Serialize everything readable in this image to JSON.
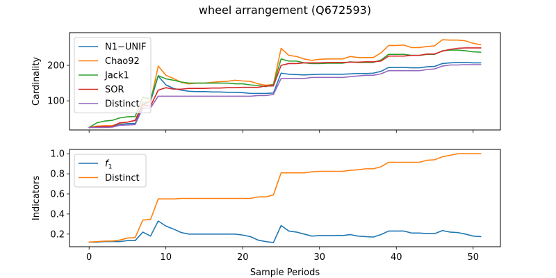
{
  "figure": {
    "title": "wheel arrangement (Q672593)"
  },
  "chart_data": [
    {
      "type": "line",
      "title": "",
      "xlabel": "",
      "ylabel": "Cardinality",
      "xlim": [
        -2.55,
        53.55
      ],
      "ylim": [
        18,
        292
      ],
      "yticks": [
        100,
        200
      ],
      "xticks": [
        0,
        10,
        20,
        30,
        40,
        50
      ],
      "show_xtick_labels": false,
      "grid": false,
      "legend_position": "upper-left",
      "x": [
        0,
        1,
        2,
        3,
        4,
        5,
        6,
        7,
        8,
        9,
        10,
        11,
        12,
        13,
        14,
        15,
        16,
        17,
        18,
        19,
        20,
        21,
        22,
        23,
        24,
        25,
        26,
        27,
        28,
        29,
        30,
        31,
        32,
        33,
        34,
        35,
        36,
        37,
        38,
        39,
        40,
        41,
        42,
        43,
        44,
        45,
        46,
        47,
        48,
        49,
        50,
        51
      ],
      "series": [
        {
          "name": "N1−UNIF",
          "color": "#1f77b4",
          "values": [
            25,
            27,
            28,
            28,
            33,
            36,
            36,
            90,
            98,
            170,
            145,
            135,
            130,
            127,
            126,
            126,
            125,
            125,
            124,
            124,
            123,
            121,
            121,
            121,
            122,
            178,
            175,
            174,
            173,
            174,
            175,
            175,
            175,
            175,
            176,
            177,
            177,
            178,
            183,
            194,
            194,
            194,
            193,
            193,
            196,
            197,
            205,
            207,
            208,
            208,
            207,
            207
          ]
        },
        {
          "name": "Chao92",
          "color": "#ff7f0e",
          "values": [
            25,
            29,
            30,
            30,
            37,
            40,
            45,
            95,
            98,
            198,
            172,
            163,
            152,
            148,
            150,
            150,
            152,
            154,
            155,
            158,
            156,
            155,
            148,
            144,
            146,
            248,
            228,
            225,
            218,
            214,
            217,
            218,
            218,
            218,
            225,
            222,
            222,
            222,
            235,
            256,
            256,
            257,
            250,
            250,
            253,
            255,
            272,
            271,
            271,
            269,
            262,
            258
          ]
        },
        {
          "name": "Jack1",
          "color": "#2ca02c",
          "values": [
            25,
            38,
            43,
            45,
            52,
            55,
            56,
            110,
            105,
            171,
            162,
            158,
            153,
            150,
            150,
            150,
            150,
            150,
            150,
            148,
            148,
            145,
            143,
            140,
            146,
            218,
            212,
            212,
            207,
            205,
            205,
            206,
            206,
            206,
            210,
            208,
            208,
            208,
            215,
            231,
            231,
            231,
            228,
            228,
            231,
            231,
            241,
            243,
            243,
            241,
            238,
            237
          ]
        },
        {
          "name": "SOR",
          "color": "#d62728",
          "values": [
            25,
            27,
            28,
            28,
            38,
            40,
            45,
            89,
            85,
            130,
            137,
            133,
            133,
            135,
            135,
            135,
            136,
            136,
            137,
            137,
            138,
            138,
            138,
            142,
            142,
            200,
            205,
            205,
            207,
            207,
            207,
            208,
            208,
            208,
            209,
            209,
            210,
            210,
            212,
            226,
            226,
            226,
            228,
            228,
            232,
            232,
            240,
            245,
            248,
            249,
            249,
            249
          ]
        },
        {
          "name": "Distinct",
          "color": "#9467bd",
          "values": [
            25,
            25,
            25,
            26,
            31,
            32,
            33,
            80,
            80,
            113,
            113,
            113,
            113,
            113,
            113,
            113,
            113,
            113,
            113,
            113,
            113,
            113,
            115,
            115,
            118,
            163,
            163,
            163,
            163,
            166,
            166,
            166,
            166,
            166,
            168,
            170,
            172,
            172,
            176,
            185,
            185,
            185,
            185,
            185,
            188,
            190,
            198,
            201,
            201,
            202,
            202,
            202
          ]
        }
      ]
    },
    {
      "type": "line",
      "title": "",
      "xlabel": "Sample Periods",
      "ylabel": "Indicators",
      "xlim": [
        -2.55,
        53.55
      ],
      "ylim": [
        0.074,
        1.043
      ],
      "yticks": [
        0.2,
        0.4,
        0.6,
        0.8,
        1.0
      ],
      "ytick_labels": [
        "0.2",
        "0.4",
        "0.6",
        "0.8",
        "1.0"
      ],
      "xticks": [
        0,
        10,
        20,
        30,
        40,
        50
      ],
      "xtick_labels": [
        "0",
        "10",
        "20",
        "30",
        "40",
        "50"
      ],
      "show_xtick_labels": true,
      "grid": false,
      "legend_position": "upper-left",
      "x": [
        0,
        1,
        2,
        3,
        4,
        5,
        6,
        7,
        8,
        9,
        10,
        11,
        12,
        13,
        14,
        15,
        16,
        17,
        18,
        19,
        20,
        21,
        22,
        23,
        24,
        25,
        26,
        27,
        28,
        29,
        30,
        31,
        32,
        33,
        34,
        35,
        36,
        37,
        38,
        39,
        40,
        41,
        42,
        43,
        44,
        45,
        46,
        47,
        48,
        49,
        50,
        51
      ],
      "series": [
        {
          "name": "f1",
          "label_main": "f",
          "label_sub": "1",
          "color": "#1f77b4",
          "values": [
            0.12,
            0.12,
            0.125,
            0.125,
            0.125,
            0.135,
            0.135,
            0.22,
            0.18,
            0.33,
            0.28,
            0.25,
            0.215,
            0.2,
            0.2,
            0.2,
            0.2,
            0.2,
            0.2,
            0.2,
            0.19,
            0.175,
            0.14,
            0.125,
            0.115,
            0.285,
            0.23,
            0.22,
            0.2,
            0.18,
            0.185,
            0.185,
            0.185,
            0.185,
            0.195,
            0.18,
            0.175,
            0.17,
            0.195,
            0.23,
            0.23,
            0.23,
            0.21,
            0.21,
            0.205,
            0.205,
            0.235,
            0.22,
            0.215,
            0.2,
            0.18,
            0.175
          ]
        },
        {
          "name": "Distinct",
          "color": "#ff7f0e",
          "values": [
            0.12,
            0.125,
            0.13,
            0.13,
            0.14,
            0.16,
            0.165,
            0.34,
            0.345,
            0.55,
            0.55,
            0.55,
            0.555,
            0.555,
            0.555,
            0.555,
            0.555,
            0.555,
            0.555,
            0.555,
            0.555,
            0.555,
            0.57,
            0.57,
            0.59,
            0.81,
            0.81,
            0.81,
            0.81,
            0.82,
            0.825,
            0.825,
            0.825,
            0.825,
            0.835,
            0.84,
            0.85,
            0.85,
            0.87,
            0.915,
            0.915,
            0.915,
            0.915,
            0.915,
            0.935,
            0.94,
            0.97,
            0.985,
            1.0,
            1.0,
            1.0,
            1.0
          ]
        }
      ]
    }
  ]
}
